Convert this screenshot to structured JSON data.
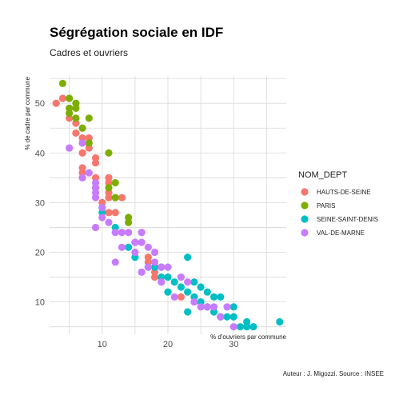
{
  "chart_data": {
    "type": "scatter",
    "title": "Ségrégation sociale en IDF",
    "subtitle": "Cadres et ouvriers",
    "xlabel": "% d'ouvriers par commune",
    "ylabel": "% de cadre par commune",
    "caption": "Auteur : J. Migozzi. Source : INSEE",
    "xlim": [
      2,
      38
    ],
    "ylim": [
      3.5,
      55.5
    ],
    "x_ticks": [
      10,
      20,
      30
    ],
    "y_ticks": [
      10,
      20,
      30,
      40,
      50
    ],
    "grid": true,
    "legend": {
      "title": "NOM_DEPT",
      "position": "right"
    },
    "series": [
      {
        "name": "HAUTS-DE-SEINE",
        "color": "#F8766D",
        "points": [
          [
            3,
            50
          ],
          [
            4,
            51
          ],
          [
            5,
            47
          ],
          [
            6,
            46
          ],
          [
            6,
            44
          ],
          [
            7,
            43
          ],
          [
            7,
            42
          ],
          [
            7,
            40
          ],
          [
            8,
            43
          ],
          [
            8,
            41
          ],
          [
            7,
            37
          ],
          [
            7,
            36
          ],
          [
            7,
            35
          ],
          [
            9,
            39
          ],
          [
            9,
            38
          ],
          [
            9,
            35
          ],
          [
            9,
            33
          ],
          [
            11,
            35
          ],
          [
            11,
            34
          ],
          [
            11,
            32
          ],
          [
            10,
            30
          ],
          [
            11,
            31
          ],
          [
            12,
            31
          ],
          [
            13,
            31
          ],
          [
            11,
            28
          ],
          [
            12,
            28
          ],
          [
            13,
            24
          ],
          [
            15,
            22
          ],
          [
            16,
            24
          ],
          [
            17,
            19
          ],
          [
            17,
            18
          ],
          [
            18,
            16
          ],
          [
            18,
            15
          ],
          [
            22,
            11
          ],
          [
            26,
            9
          ],
          [
            27,
            8
          ],
          [
            28,
            7
          ]
        ]
      },
      {
        "name": "PARIS",
        "color": "#7CAE00",
        "points": [
          [
            4,
            54
          ],
          [
            5,
            51
          ],
          [
            5,
            49
          ],
          [
            5,
            48
          ],
          [
            6,
            50
          ],
          [
            6,
            49
          ],
          [
            6,
            47
          ],
          [
            7,
            45
          ],
          [
            7,
            42
          ],
          [
            8,
            47
          ],
          [
            8,
            42
          ],
          [
            11,
            40
          ],
          [
            11,
            33
          ],
          [
            12,
            34
          ],
          [
            12,
            31
          ],
          [
            14,
            27
          ],
          [
            14,
            26
          ]
        ]
      },
      {
        "name": "SEINE-SAINT-DENIS",
        "color": "#00BFC4",
        "points": [
          [
            10,
            29
          ],
          [
            10,
            28
          ],
          [
            12,
            25
          ],
          [
            14,
            21
          ],
          [
            15,
            19
          ],
          [
            17,
            17
          ],
          [
            18,
            17
          ],
          [
            19,
            17
          ],
          [
            19,
            15
          ],
          [
            20,
            15
          ],
          [
            20,
            12
          ],
          [
            21,
            14
          ],
          [
            22,
            13
          ],
          [
            23,
            19
          ],
          [
            23,
            12
          ],
          [
            23,
            8
          ],
          [
            24,
            14
          ],
          [
            24,
            11
          ],
          [
            25,
            13
          ],
          [
            25,
            10
          ],
          [
            26,
            12
          ],
          [
            26,
            9
          ],
          [
            27,
            11
          ],
          [
            27,
            8
          ],
          [
            28,
            11
          ],
          [
            28,
            7
          ],
          [
            29,
            7
          ],
          [
            30,
            9
          ],
          [
            30,
            7
          ],
          [
            31,
            5
          ],
          [
            32,
            6
          ],
          [
            32,
            5
          ],
          [
            33,
            5
          ],
          [
            37,
            6
          ]
        ]
      },
      {
        "name": "VAL-DE-MARNE",
        "color": "#C77CFF",
        "points": [
          [
            5,
            41
          ],
          [
            7,
            42
          ],
          [
            7,
            35
          ],
          [
            8,
            36
          ],
          [
            9,
            34
          ],
          [
            9,
            33
          ],
          [
            9,
            32
          ],
          [
            9,
            31
          ],
          [
            9,
            25
          ],
          [
            10,
            29
          ],
          [
            10,
            27
          ],
          [
            11,
            26
          ],
          [
            12,
            18
          ],
          [
            12,
            24
          ],
          [
            13,
            21
          ],
          [
            13,
            24
          ],
          [
            14,
            24
          ],
          [
            15,
            22
          ],
          [
            15,
            20
          ],
          [
            16,
            24
          ],
          [
            16,
            22
          ],
          [
            16,
            16
          ],
          [
            17,
            21
          ],
          [
            17,
            17
          ],
          [
            18,
            20
          ],
          [
            18,
            18
          ],
          [
            19,
            17
          ],
          [
            19,
            14
          ],
          [
            20,
            17
          ],
          [
            21,
            11
          ],
          [
            22,
            15
          ],
          [
            23,
            14
          ],
          [
            24,
            10
          ],
          [
            25,
            9
          ],
          [
            26,
            9
          ],
          [
            27,
            9
          ],
          [
            28,
            7
          ],
          [
            29,
            9
          ],
          [
            30,
            5
          ]
        ]
      }
    ]
  }
}
